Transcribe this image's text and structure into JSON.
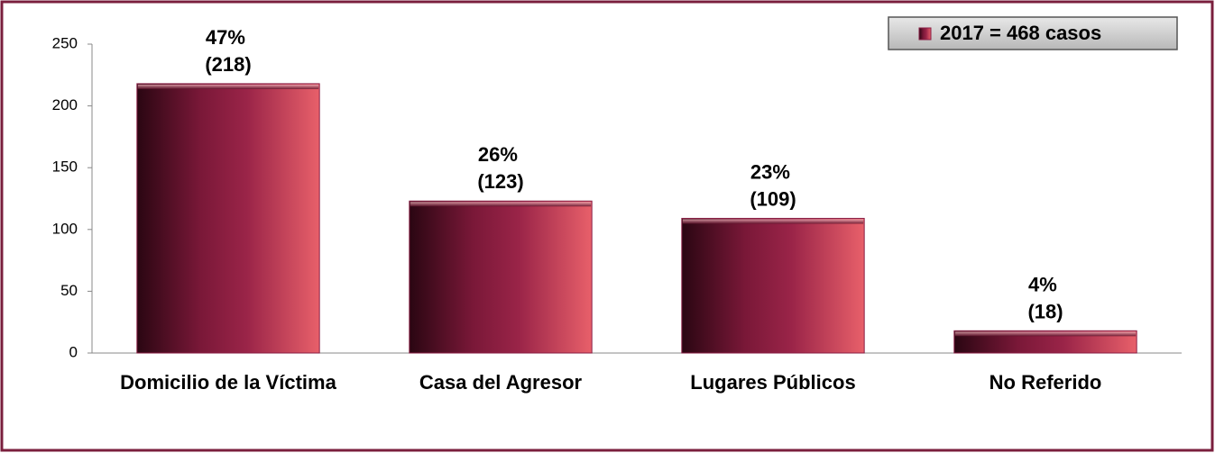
{
  "chart_data": {
    "type": "bar",
    "categories": [
      "Domicilio de la Víctima",
      "Casa del Agresor",
      "Lugares Públicos",
      "No Referido"
    ],
    "series": [
      {
        "name": "2017 = 468 casos",
        "color": "#8a1f45",
        "values": [
          218,
          123,
          109,
          18
        ],
        "value_labels": [
          "47% (218)",
          "26% (123)",
          "23% (109)",
          "4% (18)"
        ]
      }
    ],
    "ylim": [
      0,
      250
    ],
    "yticks": [
      0,
      50,
      100,
      150,
      200,
      250
    ],
    "grid": false,
    "legend": "top-right"
  }
}
